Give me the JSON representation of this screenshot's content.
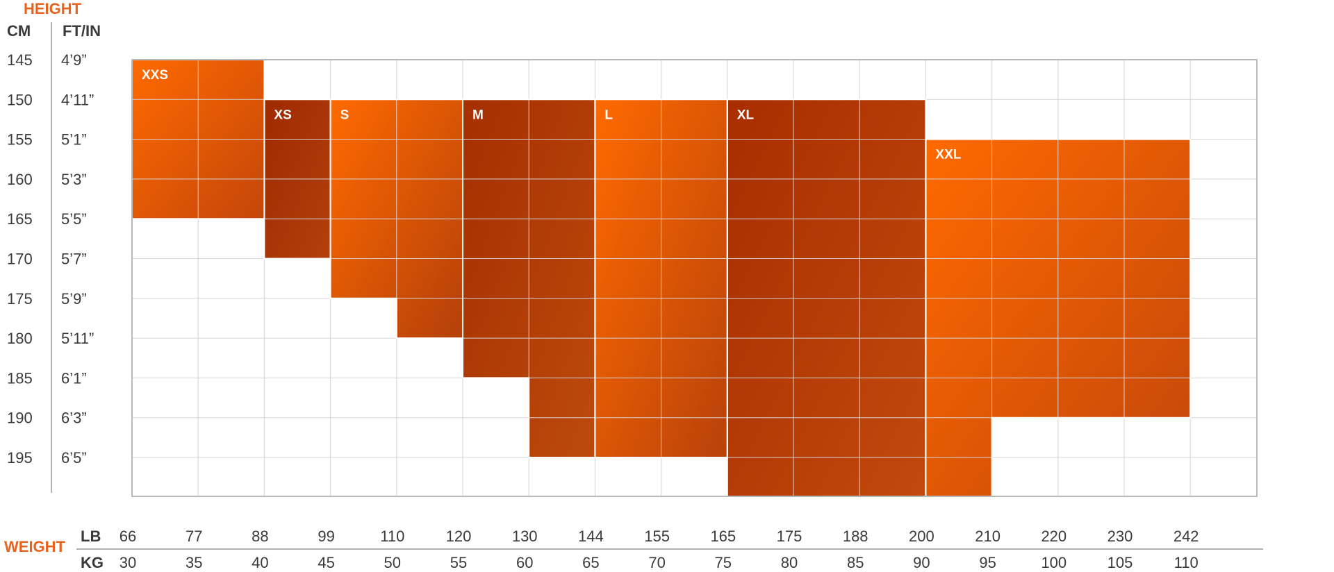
{
  "chart_data": {
    "type": "heatmap",
    "title": "",
    "y_axis_title": "HEIGHT",
    "y_unit_labels": [
      "CM",
      "FT/IN"
    ],
    "height_rows": [
      {
        "cm": "145",
        "ftin": "4’9”"
      },
      {
        "cm": "150",
        "ftin": "4’11”"
      },
      {
        "cm": "155",
        "ftin": "5’1”"
      },
      {
        "cm": "160",
        "ftin": "5’3”"
      },
      {
        "cm": "165",
        "ftin": "5’5”"
      },
      {
        "cm": "170",
        "ftin": "5’7”"
      },
      {
        "cm": "175",
        "ftin": "5’9”"
      },
      {
        "cm": "180",
        "ftin": "5’11”"
      },
      {
        "cm": "185",
        "ftin": "6’1”"
      },
      {
        "cm": "190",
        "ftin": "6’3”"
      },
      {
        "cm": "195",
        "ftin": "6’5”"
      }
    ],
    "x_axis_title": "WEIGHT",
    "x_unit_labels": [
      "LB",
      "KG"
    ],
    "weight_lb": [
      "66",
      "77",
      "88",
      "99",
      "110",
      "120",
      "130",
      "144",
      "155",
      "165",
      "175",
      "188",
      "200",
      "210",
      "220",
      "230",
      "242"
    ],
    "weight_kg": [
      "30",
      "35",
      "40",
      "45",
      "50",
      "55",
      "60",
      "65",
      "70",
      "75",
      "80",
      "85",
      "90",
      "95",
      "100",
      "105",
      "110"
    ],
    "grid": true,
    "sizes": [
      {
        "label": "XXS",
        "color_light": "#ff6a00",
        "color_dark": "#c4460a",
        "weight_kg": [
          30,
          40
        ],
        "height_cm_top": 145,
        "height_cm_bottom_by_column": [
          165,
          165
        ]
      },
      {
        "label": "XS",
        "color_light": "#9e2a00",
        "color_dark": "#b2400c",
        "weight_kg": [
          40,
          45
        ],
        "height_cm_top": 150,
        "height_cm_bottom_by_column": [
          170
        ]
      },
      {
        "label": "S",
        "color_light": "#ff6a00",
        "color_dark": "#b4400a",
        "weight_kg": [
          45,
          55
        ],
        "height_cm_top": 150,
        "height_cm_bottom_by_column": [
          175,
          180
        ]
      },
      {
        "label": "M",
        "color_light": "#a52f00",
        "color_dark": "#bd4a0c",
        "weight_kg": [
          55,
          65
        ],
        "height_cm_top": 150,
        "height_cm_bottom_by_column": [
          185,
          195
        ]
      },
      {
        "label": "L",
        "color_light": "#ff6a00",
        "color_dark": "#b8420a",
        "weight_kg": [
          65,
          75
        ],
        "height_cm_top": 150,
        "height_cm_bottom_by_column": [
          195,
          195
        ]
      },
      {
        "label": "XL",
        "color_light": "#a82d00",
        "color_dark": "#c24a0c",
        "weight_kg": [
          75,
          90
        ],
        "height_cm_top": 150,
        "height_cm_bottom_by_column": [
          200,
          200,
          200
        ]
      },
      {
        "label": "XXL",
        "color_light": "#ff6a00",
        "color_dark": "#c2460a",
        "weight_kg": [
          90,
          110
        ],
        "height_cm_top": 155,
        "height_cm_bottom_by_column": [
          200,
          190,
          190,
          190
        ]
      }
    ]
  }
}
